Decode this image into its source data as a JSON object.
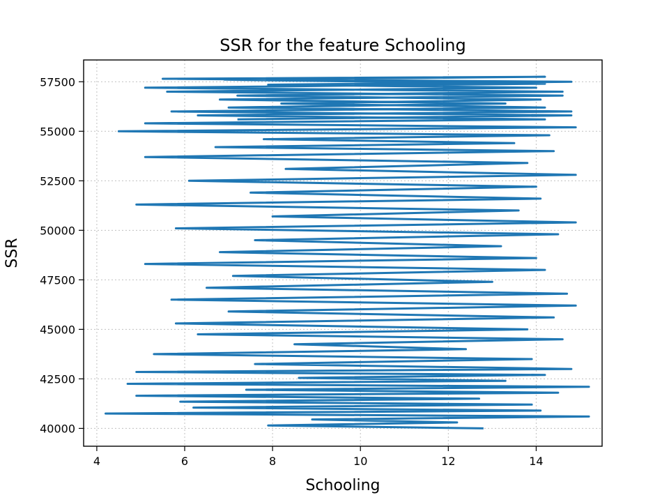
{
  "chart_data": {
    "type": "line",
    "title": "SSR for the feature Schooling",
    "xlabel": "Schooling",
    "ylabel": "SSR",
    "xlim": [
      3.7,
      15.5
    ],
    "ylim": [
      39100,
      58600
    ],
    "xticks": [
      4,
      6,
      8,
      10,
      12,
      14
    ],
    "yticks": [
      40000,
      42500,
      45000,
      47500,
      50000,
      52500,
      55000,
      57500
    ],
    "xtick_labels": [
      "4",
      "6",
      "8",
      "10",
      "12",
      "14"
    ],
    "ytick_labels": [
      "40000",
      "42500",
      "45000",
      "47500",
      "50000",
      "52500",
      "55000",
      "57500"
    ],
    "grid": true,
    "series": [
      {
        "color": "#1f77b4",
        "x": [
          12.8,
          7.9,
          12.2,
          8.9,
          15.2,
          4.2,
          14.1,
          6.2,
          13.9,
          5.9,
          12.7,
          4.9,
          14.5,
          7.4,
          15.2,
          4.7,
          13.3,
          8.6,
          14.2,
          4.9,
          14.8,
          7.6,
          13.9,
          5.3,
          12.4,
          8.5,
          14.6,
          6.3,
          13.8,
          5.8,
          14.4,
          7.0,
          14.9,
          5.7,
          14.7,
          6.5,
          13.0,
          7.1,
          14.2,
          5.1,
          14.0,
          6.8,
          13.2,
          7.6,
          14.5,
          5.8,
          14.9,
          8.0,
          13.6,
          4.9,
          14.1,
          7.5,
          14.0,
          6.1,
          14.9,
          8.3,
          13.8,
          5.1,
          14.4,
          6.7,
          13.5,
          7.8,
          14.3,
          4.5,
          14.9,
          5.1,
          14.2,
          6.3,
          14.8,
          7.0,
          13.3,
          6.8,
          14.6,
          5.6,
          14.0,
          7.9,
          14.8,
          5.5,
          14.2,
          6.9,
          14.2,
          5.1,
          14.6,
          7.2,
          14.1,
          8.2,
          14.2,
          5.7,
          14.8,
          7.2
        ],
        "y": [
          40000,
          40150,
          40300,
          40450,
          40600,
          40750,
          40900,
          41050,
          41200,
          41350,
          41500,
          41650,
          41800,
          41950,
          42100,
          42250,
          42400,
          42550,
          42700,
          42850,
          43000,
          43250,
          43500,
          43750,
          44000,
          44250,
          44500,
          44750,
          45000,
          45300,
          45600,
          45900,
          46200,
          46500,
          46800,
          47100,
          47400,
          47700,
          48000,
          48300,
          48600,
          48900,
          49200,
          49500,
          49800,
          50100,
          50400,
          50700,
          51000,
          51300,
          51600,
          51900,
          52200,
          52500,
          52800,
          53100,
          53400,
          53700,
          54000,
          54200,
          54400,
          54600,
          54800,
          55000,
          55200,
          55400,
          55600,
          55800,
          56000,
          56200,
          56400,
          56600,
          56800,
          57000,
          57200,
          57350,
          57500,
          57650,
          57750,
          57600,
          57400,
          57200,
          57000,
          56800,
          56600,
          56400,
          56200,
          56000,
          55800,
          55600
        ]
      }
    ]
  }
}
